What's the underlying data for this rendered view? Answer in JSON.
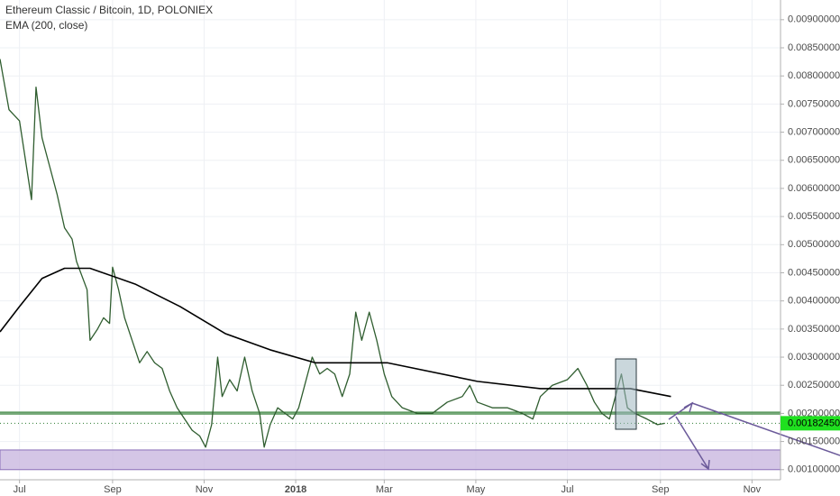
{
  "chart_data": {
    "type": "line",
    "title": "Ethereum Classic / Bitcoin, 1D, POLONIEX",
    "subtitle": "EMA (200, close)",
    "xlim": [
      -13,
      507
    ],
    "xticks": [
      {
        "value": 0,
        "label": "Jul"
      },
      {
        "value": 62,
        "label": "Sep"
      },
      {
        "value": 123,
        "label": "Nov"
      },
      {
        "value": 184,
        "label": "2018"
      },
      {
        "value": 243,
        "label": "Mar"
      },
      {
        "value": 304,
        "label": "May"
      },
      {
        "value": 365,
        "label": "Jul"
      },
      {
        "value": 427,
        "label": "Sep"
      },
      {
        "value": 488,
        "label": "Nov"
      }
    ],
    "ylim": [
      0.00082,
      0.00935
    ],
    "yticks": [
      {
        "value": 0.001,
        "label": "0.00100000"
      },
      {
        "value": 0.0015,
        "label": "0.00150000"
      },
      {
        "value": 0.002,
        "label": "0.00200000"
      },
      {
        "value": 0.0025,
        "label": "0.00250000"
      },
      {
        "value": 0.003,
        "label": "0.00300000"
      },
      {
        "value": 0.0035,
        "label": "0.00350000"
      },
      {
        "value": 0.004,
        "label": "0.00400000"
      },
      {
        "value": 0.0045,
        "label": "0.00450000"
      },
      {
        "value": 0.005,
        "label": "0.00500000"
      },
      {
        "value": 0.0055,
        "label": "0.00550000"
      },
      {
        "value": 0.006,
        "label": "0.00600000"
      },
      {
        "value": 0.0065,
        "label": "0.00650000"
      },
      {
        "value": 0.007,
        "label": "0.00700000"
      },
      {
        "value": 0.0075,
        "label": "0.00750000"
      },
      {
        "value": 0.008,
        "label": "0.00800000"
      },
      {
        "value": 0.0085,
        "label": "0.00850000"
      },
      {
        "value": 0.009,
        "label": "0.00900000"
      }
    ],
    "grid": true,
    "series": [
      {
        "color": "#2f5d2f",
        "x": [
          -13,
          -7,
          0,
          8,
          11,
          15,
          20,
          25,
          30,
          35,
          38,
          45,
          47,
          52,
          56,
          60,
          62,
          66,
          70,
          75,
          80,
          85,
          90,
          95,
          100,
          105,
          110,
          115,
          120,
          124,
          128,
          132,
          135,
          140,
          145,
          150,
          155,
          160,
          163,
          167,
          172,
          177,
          182,
          186,
          190,
          195,
          200,
          205,
          210,
          215,
          220,
          224,
          228,
          233,
          238,
          243,
          248,
          255,
          265,
          275,
          285,
          295,
          300,
          305,
          315,
          325,
          335,
          342,
          347,
          355,
          365,
          372,
          378,
          383,
          388,
          393,
          401,
          405,
          410,
          418,
          425,
          430
        ],
        "values": [
          0.0083,
          0.0074,
          0.0072,
          0.0058,
          0.0078,
          0.0069,
          0.0064,
          0.0059,
          0.0053,
          0.0051,
          0.0047,
          0.0042,
          0.0033,
          0.0035,
          0.0037,
          0.0036,
          0.0046,
          0.0042,
          0.0037,
          0.0033,
          0.0029,
          0.0031,
          0.0029,
          0.0028,
          0.0024,
          0.0021,
          0.0019,
          0.0017,
          0.0016,
          0.0014,
          0.0018,
          0.003,
          0.0023,
          0.0026,
          0.0024,
          0.003,
          0.0024,
          0.002,
          0.0014,
          0.0018,
          0.0021,
          0.002,
          0.0019,
          0.0021,
          0.0025,
          0.003,
          0.0027,
          0.0028,
          0.0027,
          0.0023,
          0.0027,
          0.0038,
          0.0033,
          0.0038,
          0.0033,
          0.0027,
          0.0023,
          0.0021,
          0.002,
          0.002,
          0.0022,
          0.0023,
          0.0025,
          0.0022,
          0.0021,
          0.0021,
          0.002,
          0.0019,
          0.0023,
          0.0025,
          0.0026,
          0.0028,
          0.0025,
          0.0022,
          0.002,
          0.0019,
          0.0027,
          0.0021,
          0.002,
          0.0019,
          0.0018,
          0.0018245
        ]
      },
      {
        "name": "EMA (200, close)",
        "color": "#000000",
        "x": [
          -13,
          0,
          15,
          30,
          47,
          77,
          107,
          137,
          167,
          197,
          225,
          245,
          305,
          347,
          407,
          434
        ],
        "values": [
          0.00345,
          0.0039,
          0.0044,
          0.00458,
          0.00458,
          0.0043,
          0.0039,
          0.00342,
          0.00313,
          0.0029,
          0.0029,
          0.0029,
          0.00257,
          0.00244,
          0.00244,
          0.0023
        ]
      }
    ],
    "hlines": [
      0.00199,
      0.00202
    ],
    "hline_color": "#2e7d32",
    "zone": [
      0.001,
      0.00135
    ],
    "zone_color": "#c9b8e0",
    "last_price": {
      "value": 0.0018245,
      "label": "0.00182450"
    }
  }
}
